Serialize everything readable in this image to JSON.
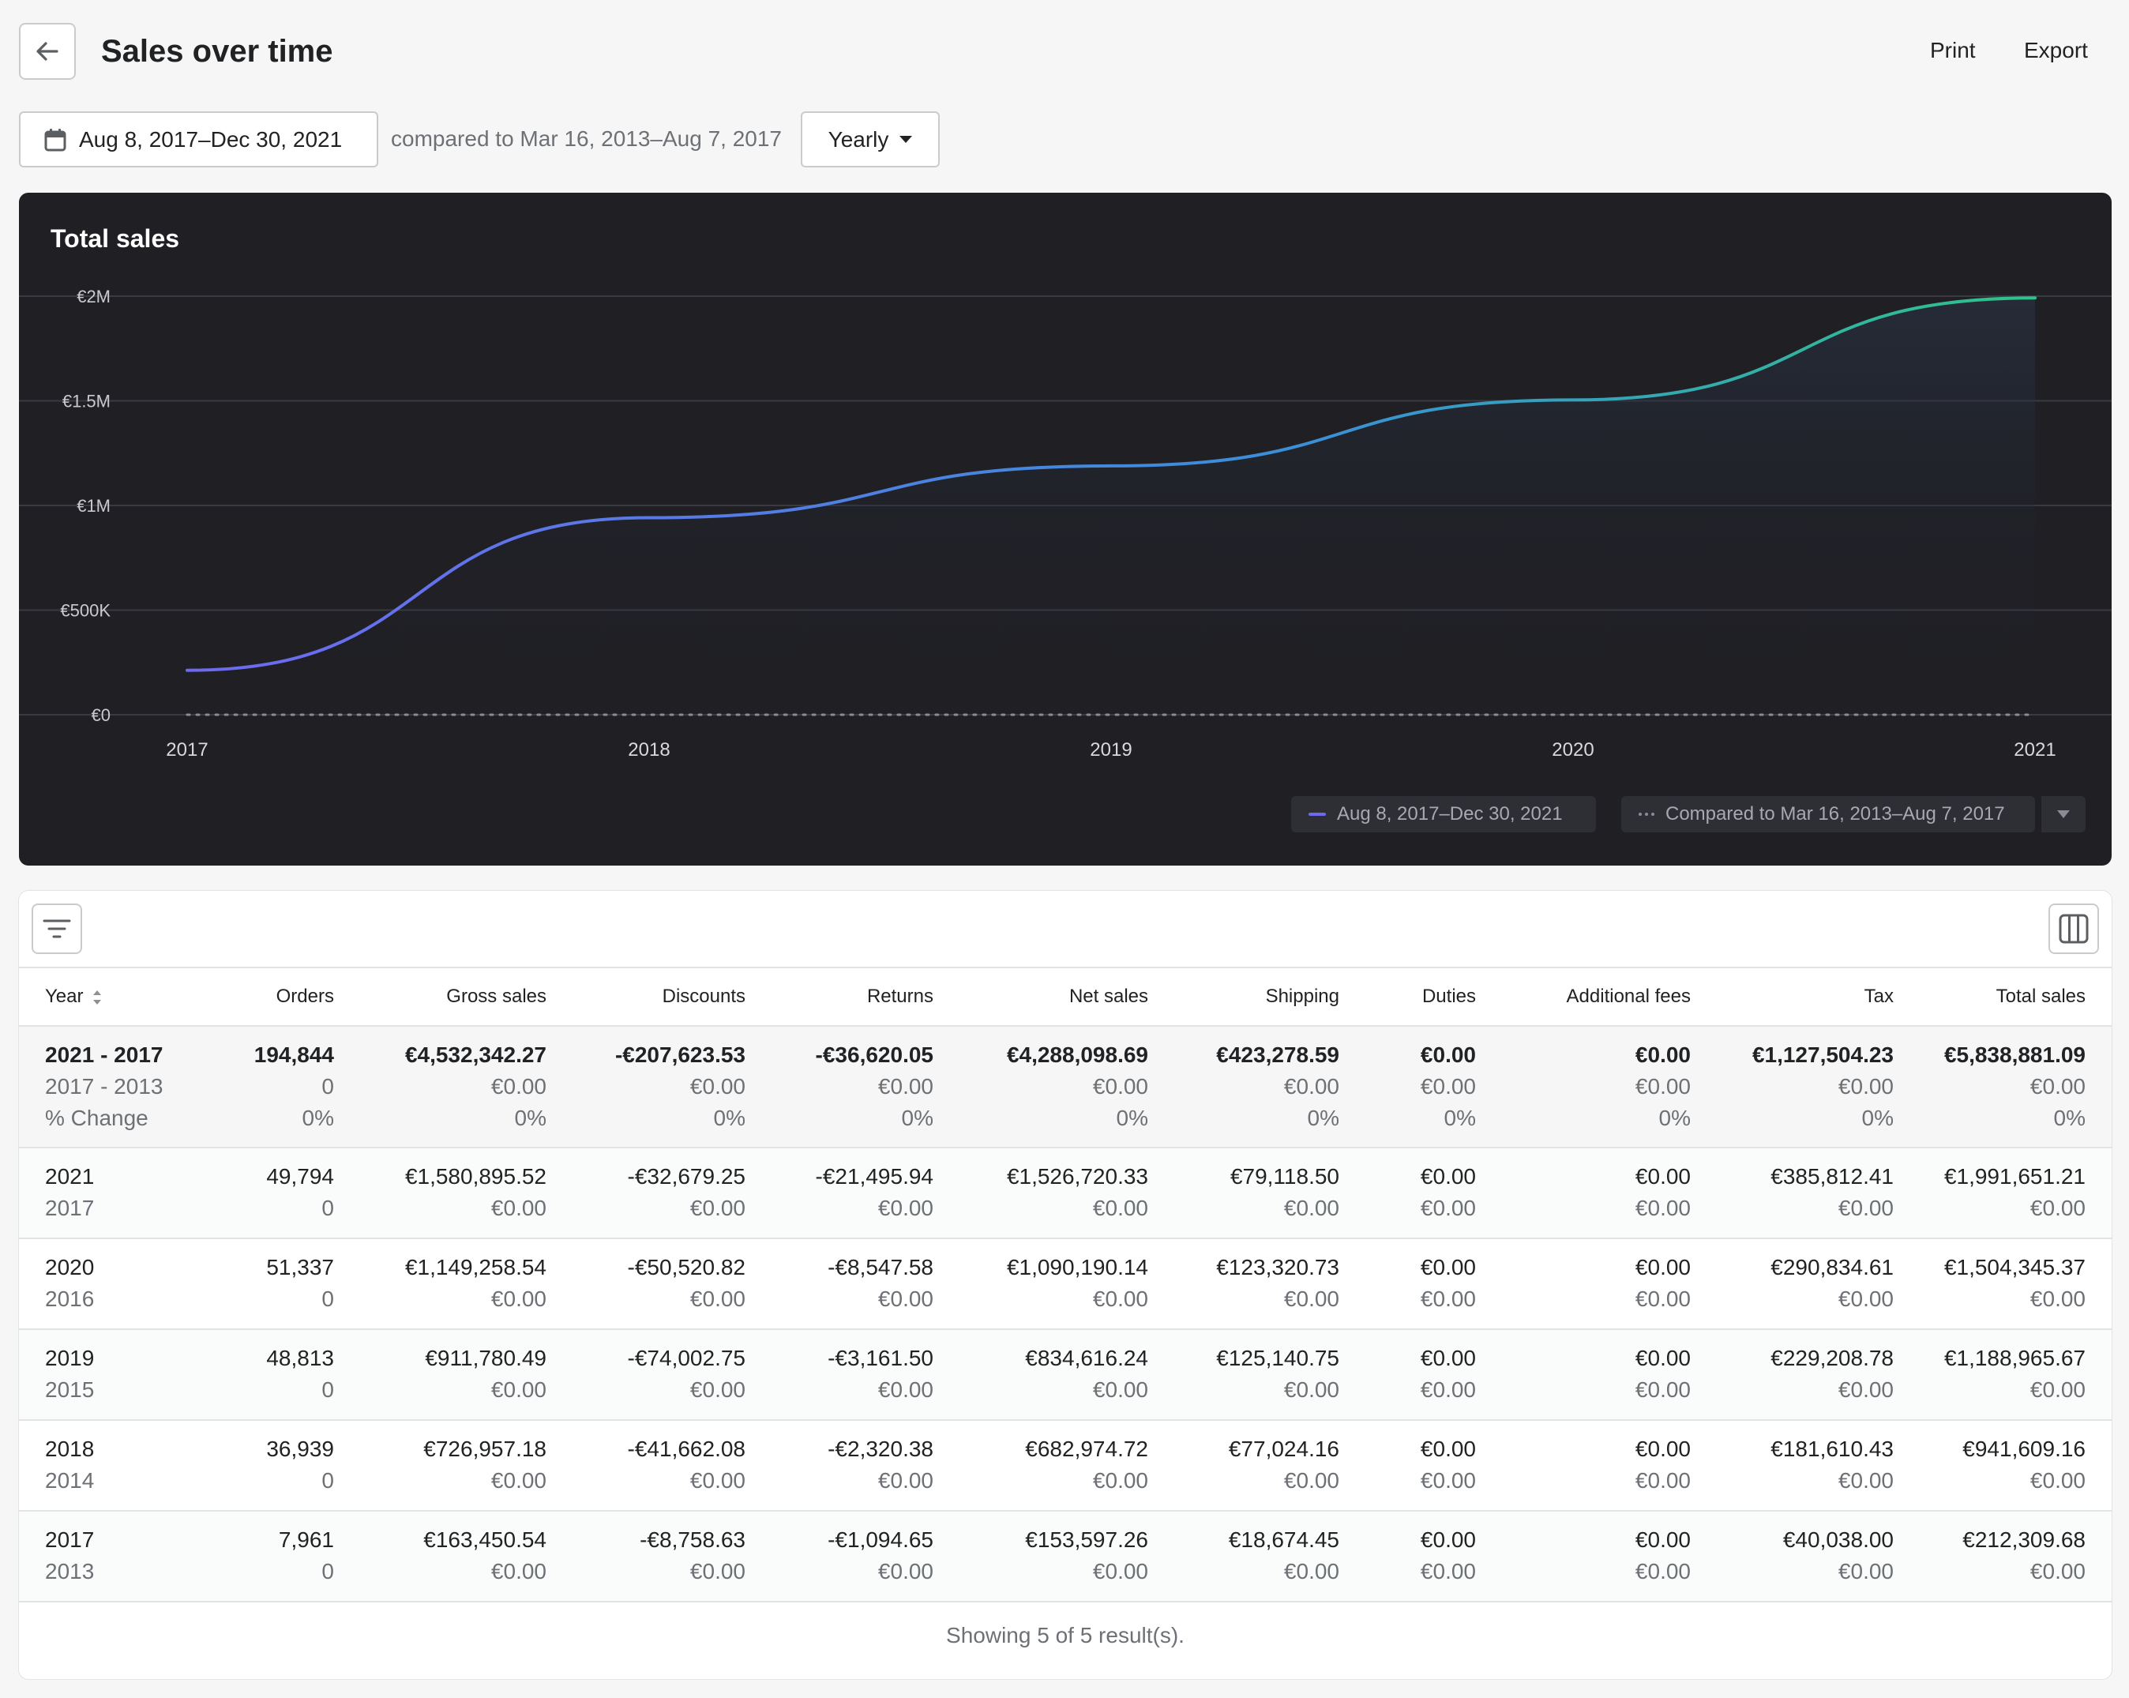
{
  "header": {
    "title": "Sales over time",
    "print_label": "Print",
    "export_label": "Export"
  },
  "filters": {
    "date_range": "Aug 8, 2017–Dec 30, 2021",
    "compare_text": "compared to Mar 16, 2013–Aug 7, 2017",
    "period": "Yearly"
  },
  "chart": {
    "legend_primary": "Aug 8, 2017–Dec 30, 2021",
    "legend_compare": "Compared to Mar 16, 2013–Aug 7, 2017"
  },
  "chart_data": {
    "type": "line",
    "title": "Total sales",
    "x": [
      "2017",
      "2018",
      "2019",
      "2020",
      "2021"
    ],
    "series": [
      {
        "name": "Aug 8, 2017–Dec 30, 2021",
        "values": [
          212309.68,
          941609.16,
          1188965.67,
          1504345.37,
          1991651.21
        ]
      },
      {
        "name": "Compared to Mar 16, 2013–Aug 7, 2017",
        "values": [
          0,
          0,
          0,
          0,
          0
        ]
      }
    ],
    "y_ticks": [
      "€0",
      "€500K",
      "€1M",
      "€1.5M",
      "€2M"
    ],
    "ylim": [
      0,
      2000000
    ],
    "grid": true,
    "colors": {
      "start": "#6e6af0",
      "end": "#2fc389",
      "compare": "#8a8b93"
    }
  },
  "table": {
    "columns": [
      "Year",
      "Orders",
      "Gross sales",
      "Discounts",
      "Returns",
      "Net sales",
      "Shipping",
      "Duties",
      "Additional fees",
      "Tax",
      "Total sales"
    ],
    "summary": {
      "rows": [
        [
          "2021 - 2017",
          "194,844",
          "€4,532,342.27",
          "-€207,623.53",
          "-€36,620.05",
          "€4,288,098.69",
          "€423,278.59",
          "€0.00",
          "€0.00",
          "€1,127,504.23",
          "€5,838,881.09"
        ],
        [
          "2017 - 2013",
          "0",
          "€0.00",
          "€0.00",
          "€0.00",
          "€0.00",
          "€0.00",
          "€0.00",
          "€0.00",
          "€0.00",
          "€0.00"
        ],
        [
          "% Change",
          "0%",
          "0%",
          "0%",
          "0%",
          "0%",
          "0%",
          "0%",
          "0%",
          "0%",
          "0%"
        ]
      ]
    },
    "rows": [
      {
        "primary": [
          "2021",
          "49,794",
          "€1,580,895.52",
          "-€32,679.25",
          "-€21,495.94",
          "€1,526,720.33",
          "€79,118.50",
          "€0.00",
          "€0.00",
          "€385,812.41",
          "€1,991,651.21"
        ],
        "compare": [
          "2017",
          "0",
          "€0.00",
          "€0.00",
          "€0.00",
          "€0.00",
          "€0.00",
          "€0.00",
          "€0.00",
          "€0.00",
          "€0.00"
        ]
      },
      {
        "primary": [
          "2020",
          "51,337",
          "€1,149,258.54",
          "-€50,520.82",
          "-€8,547.58",
          "€1,090,190.14",
          "€123,320.73",
          "€0.00",
          "€0.00",
          "€290,834.61",
          "€1,504,345.37"
        ],
        "compare": [
          "2016",
          "0",
          "€0.00",
          "€0.00",
          "€0.00",
          "€0.00",
          "€0.00",
          "€0.00",
          "€0.00",
          "€0.00",
          "€0.00"
        ]
      },
      {
        "primary": [
          "2019",
          "48,813",
          "€911,780.49",
          "-€74,002.75",
          "-€3,161.50",
          "€834,616.24",
          "€125,140.75",
          "€0.00",
          "€0.00",
          "€229,208.78",
          "€1,188,965.67"
        ],
        "compare": [
          "2015",
          "0",
          "€0.00",
          "€0.00",
          "€0.00",
          "€0.00",
          "€0.00",
          "€0.00",
          "€0.00",
          "€0.00",
          "€0.00"
        ]
      },
      {
        "primary": [
          "2018",
          "36,939",
          "€726,957.18",
          "-€41,662.08",
          "-€2,320.38",
          "€682,974.72",
          "€77,024.16",
          "€0.00",
          "€0.00",
          "€181,610.43",
          "€941,609.16"
        ],
        "compare": [
          "2014",
          "0",
          "€0.00",
          "€0.00",
          "€0.00",
          "€0.00",
          "€0.00",
          "€0.00",
          "€0.00",
          "€0.00",
          "€0.00"
        ]
      },
      {
        "primary": [
          "2017",
          "7,961",
          "€163,450.54",
          "-€8,758.63",
          "-€1,094.65",
          "€153,597.26",
          "€18,674.45",
          "€0.00",
          "€0.00",
          "€40,038.00",
          "€212,309.68"
        ],
        "compare": [
          "2013",
          "0",
          "€0.00",
          "€0.00",
          "€0.00",
          "€0.00",
          "€0.00",
          "€0.00",
          "€0.00",
          "€0.00",
          "€0.00"
        ]
      }
    ],
    "result_text": "Showing 5 of 5 result(s)."
  },
  "icons": {
    "back": "arrow-left-icon",
    "calendar": "calendar-icon",
    "filter": "filter-icon",
    "columns": "columns-icon",
    "sort": "sort-icon",
    "caret": "caret-down-icon"
  }
}
